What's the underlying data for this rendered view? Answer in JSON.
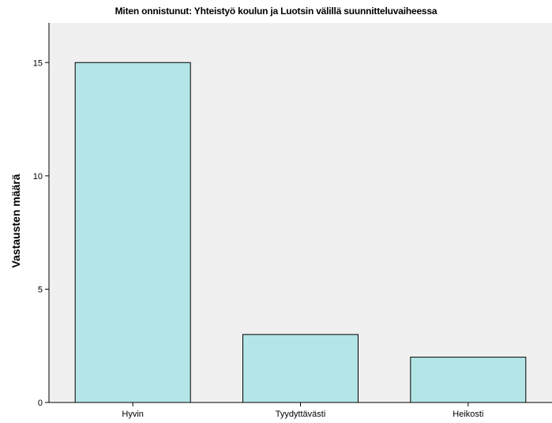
{
  "chart_data": {
    "type": "bar",
    "title": "Miten onnistunut: Yhteistyö koulun ja Luotsin välillä suunnitteluvaiheessa",
    "xlabel": "",
    "ylabel": "Vastausten määrä",
    "categories": [
      "Hyvin",
      "Tyydyttävästi",
      "Heikosti"
    ],
    "values": [
      15,
      3,
      2
    ],
    "ylim": [
      0,
      16.75
    ],
    "yticks": [
      0,
      5,
      10,
      15
    ],
    "grid": false,
    "bar_color": "#b4e5e7",
    "plot_background": "#f0f0f0"
  }
}
